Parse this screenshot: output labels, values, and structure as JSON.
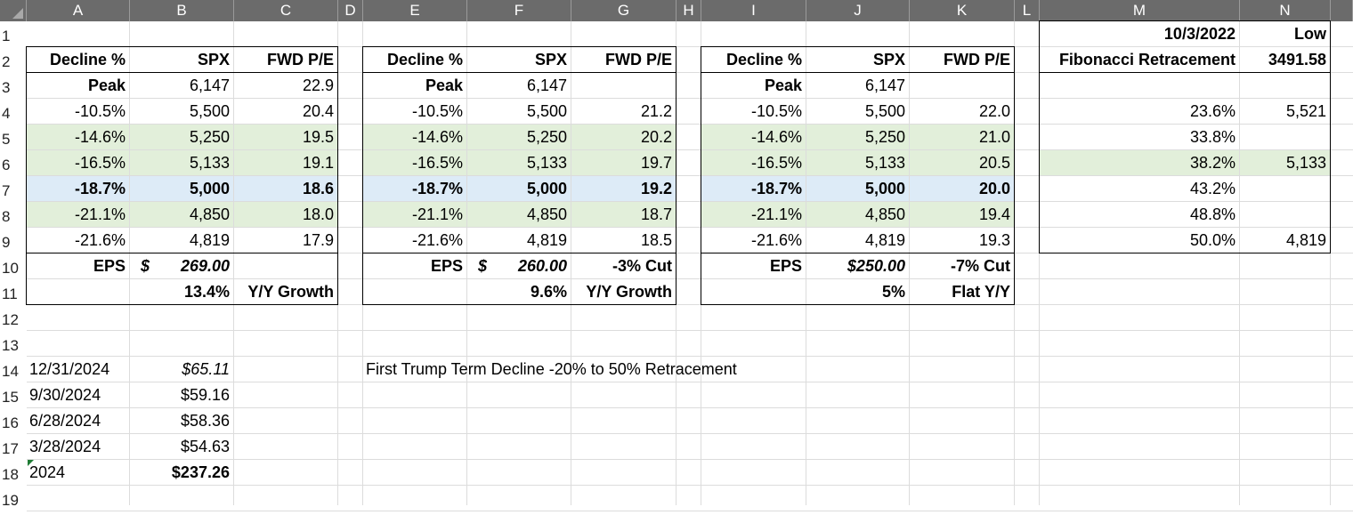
{
  "columns": [
    "A",
    "B",
    "C",
    "D",
    "E",
    "F",
    "G",
    "H",
    "I",
    "J",
    "K",
    "L",
    "M",
    "N"
  ],
  "rows": [
    "1",
    "2",
    "3",
    "4",
    "5",
    "6",
    "7",
    "8",
    "9",
    "10",
    "11",
    "12",
    "13",
    "14",
    "15",
    "16",
    "17",
    "18",
    "19"
  ],
  "table1": {
    "header": {
      "decline": "Decline %",
      "spx": "SPX",
      "pe": "FWD P/E"
    },
    "rows": [
      {
        "decline": "Peak",
        "spx": "6,147",
        "pe": "22.9"
      },
      {
        "decline": "-10.5%",
        "spx": "5,500",
        "pe": "20.4"
      },
      {
        "decline": "-14.6%",
        "spx": "5,250",
        "pe": "19.5"
      },
      {
        "decline": "-16.5%",
        "spx": "5,133",
        "pe": "19.1"
      },
      {
        "decline": "-18.7%",
        "spx": "5,000",
        "pe": "18.6"
      },
      {
        "decline": "-21.1%",
        "spx": "4,850",
        "pe": "18.0"
      },
      {
        "decline": "-21.6%",
        "spx": "4,819",
        "pe": "17.9"
      }
    ],
    "eps_label": "EPS",
    "eps_dollar": "$",
    "eps_value": "269.00",
    "eps_note": "",
    "growth_value": "13.4%",
    "growth_label": "Y/Y Growth"
  },
  "table2": {
    "header": {
      "decline": "Decline %",
      "spx": "SPX",
      "pe": "FWD P/E"
    },
    "rows": [
      {
        "decline": "Peak",
        "spx": "6,147",
        "pe": ""
      },
      {
        "decline": "-10.5%",
        "spx": "5,500",
        "pe": "21.2"
      },
      {
        "decline": "-14.6%",
        "spx": "5,250",
        "pe": "20.2"
      },
      {
        "decline": "-16.5%",
        "spx": "5,133",
        "pe": "19.7"
      },
      {
        "decline": "-18.7%",
        "spx": "5,000",
        "pe": "19.2"
      },
      {
        "decline": "-21.1%",
        "spx": "4,850",
        "pe": "18.7"
      },
      {
        "decline": "-21.6%",
        "spx": "4,819",
        "pe": "18.5"
      }
    ],
    "eps_label": "EPS",
    "eps_dollar": "$",
    "eps_value": "260.00",
    "eps_note": "-3% Cut",
    "growth_value": "9.6%",
    "growth_label": "Y/Y Growth"
  },
  "table3": {
    "header": {
      "decline": "Decline %",
      "spx": "SPX",
      "pe": "FWD P/E"
    },
    "rows": [
      {
        "decline": "Peak",
        "spx": "6,147",
        "pe": ""
      },
      {
        "decline": "-10.5%",
        "spx": "5,500",
        "pe": "22.0"
      },
      {
        "decline": "-14.6%",
        "spx": "5,250",
        "pe": "21.0"
      },
      {
        "decline": "-16.5%",
        "spx": "5,133",
        "pe": "20.5"
      },
      {
        "decline": "-18.7%",
        "spx": "5,000",
        "pe": "20.0"
      },
      {
        "decline": "-21.1%",
        "spx": "4,850",
        "pe": "19.4"
      },
      {
        "decline": "-21.6%",
        "spx": "4,819",
        "pe": "19.3"
      }
    ],
    "eps_label": "EPS",
    "eps_dollar": "",
    "eps_value": "$250.00",
    "eps_note": "-7% Cut",
    "growth_value": "5%",
    "growth_label": "Flat Y/Y"
  },
  "fib": {
    "date": "10/3/2022",
    "low_label": "Low",
    "title": "Fibonacci Retracement",
    "low_value": "3491.58",
    "rows": [
      {
        "pct": "23.6%",
        "value": "5,521"
      },
      {
        "pct": "33.8%",
        "value": ""
      },
      {
        "pct": "38.2%",
        "value": "5,133"
      },
      {
        "pct": "43.2%",
        "value": ""
      },
      {
        "pct": "48.8%",
        "value": ""
      },
      {
        "pct": "50.0%",
        "value": "4,819"
      }
    ]
  },
  "eps_history": [
    {
      "date": "12/31/2024",
      "value": "$65.11"
    },
    {
      "date": "9/30/2024",
      "value": "$59.16"
    },
    {
      "date": "6/28/2024",
      "value": "$58.36"
    },
    {
      "date": "3/28/2024",
      "value": "$54.63"
    },
    {
      "date": "2024",
      "value": "$237.26"
    }
  ],
  "note": "First Trump Term Decline -20% to 50% Retracement",
  "colors": {
    "green_fill": "#e2efda",
    "blue_fill": "#ddebf7",
    "header_bg": "#6b6b6b"
  }
}
